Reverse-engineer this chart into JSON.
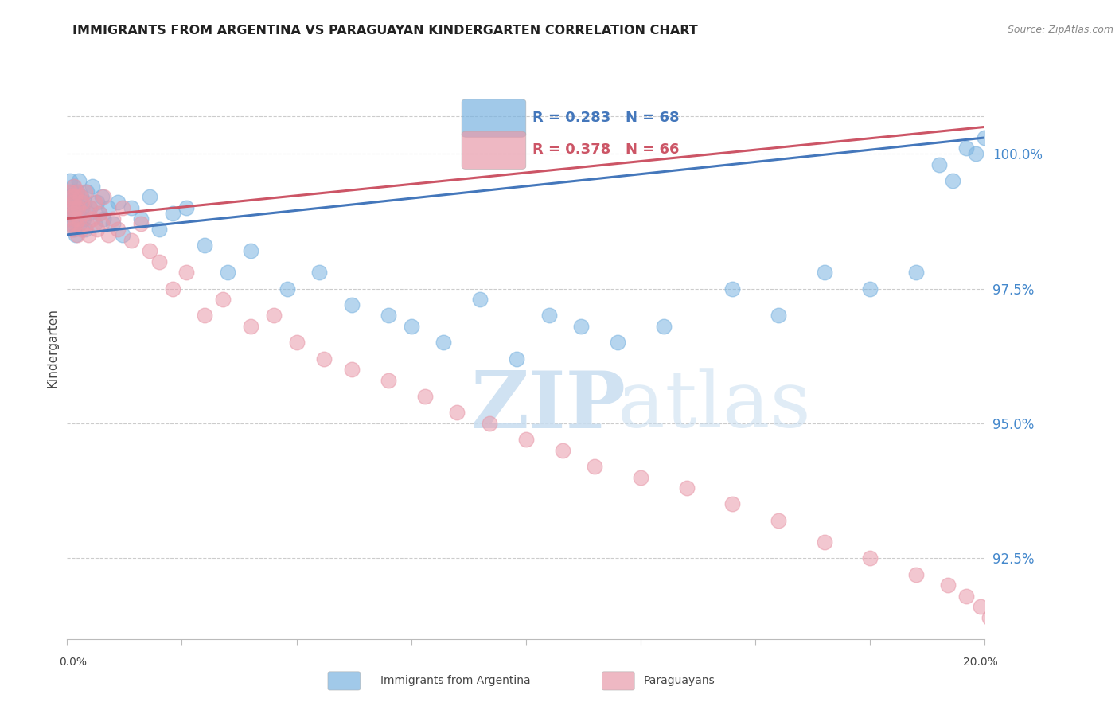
{
  "title": "IMMIGRANTS FROM ARGENTINA VS PARAGUAYAN KINDERGARTEN CORRELATION CHART",
  "source": "Source: ZipAtlas.com",
  "ylabel": "Kindergarten",
  "x_min": 0.0,
  "x_max": 20.0,
  "y_min": 91.0,
  "y_max": 101.8,
  "y_ticks": [
    92.5,
    95.0,
    97.5,
    100.0
  ],
  "blue_R": 0.283,
  "blue_N": 68,
  "pink_R": 0.378,
  "pink_N": 66,
  "blue_color": "#7ab3e0",
  "pink_color": "#e89aaa",
  "blue_line_color": "#4477bb",
  "pink_line_color": "#cc5566",
  "legend_label_blue": "Immigrants from Argentina",
  "legend_label_pink": "Paraguayans",
  "blue_x": [
    0.05,
    0.07,
    0.08,
    0.09,
    0.1,
    0.11,
    0.12,
    0.13,
    0.14,
    0.15,
    0.16,
    0.17,
    0.18,
    0.19,
    0.2,
    0.22,
    0.24,
    0.25,
    0.27,
    0.3,
    0.32,
    0.35,
    0.38,
    0.4,
    0.43,
    0.46,
    0.5,
    0.55,
    0.6,
    0.65,
    0.7,
    0.75,
    0.8,
    0.9,
    1.0,
    1.1,
    1.2,
    1.4,
    1.6,
    1.8,
    2.0,
    2.3,
    2.6,
    3.0,
    3.5,
    4.0,
    4.8,
    5.5,
    6.2,
    7.0,
    7.5,
    8.2,
    9.0,
    9.8,
    10.5,
    11.2,
    12.0,
    13.0,
    14.5,
    15.5,
    16.5,
    17.5,
    18.5,
    19.0,
    19.3,
    19.6,
    19.8,
    20.0
  ],
  "blue_y": [
    99.2,
    99.5,
    98.8,
    99.1,
    98.9,
    99.3,
    99.0,
    98.7,
    99.4,
    98.6,
    99.1,
    98.8,
    99.2,
    98.5,
    99.0,
    99.3,
    98.9,
    99.5,
    98.7,
    99.2,
    99.0,
    98.8,
    99.1,
    98.6,
    99.3,
    98.9,
    99.0,
    99.4,
    98.7,
    99.1,
    98.9,
    99.2,
    98.8,
    99.0,
    98.7,
    99.1,
    98.5,
    99.0,
    98.8,
    99.2,
    98.6,
    98.9,
    99.0,
    98.3,
    97.8,
    98.2,
    97.5,
    97.8,
    97.2,
    97.0,
    96.8,
    96.5,
    97.3,
    96.2,
    97.0,
    96.8,
    96.5,
    96.8,
    97.5,
    97.0,
    97.8,
    97.5,
    97.8,
    99.8,
    99.5,
    100.1,
    100.0,
    100.3
  ],
  "pink_x": [
    0.04,
    0.06,
    0.08,
    0.1,
    0.11,
    0.12,
    0.13,
    0.14,
    0.15,
    0.16,
    0.17,
    0.18,
    0.19,
    0.2,
    0.22,
    0.24,
    0.26,
    0.28,
    0.3,
    0.33,
    0.36,
    0.4,
    0.43,
    0.46,
    0.5,
    0.55,
    0.6,
    0.65,
    0.7,
    0.75,
    0.8,
    0.9,
    1.0,
    1.1,
    1.2,
    1.4,
    1.6,
    1.8,
    2.0,
    2.3,
    2.6,
    3.0,
    3.4,
    4.0,
    4.5,
    5.0,
    5.6,
    6.2,
    7.0,
    7.8,
    8.5,
    9.2,
    10.0,
    10.8,
    11.5,
    12.5,
    13.5,
    14.5,
    15.5,
    16.5,
    17.5,
    18.5,
    19.2,
    19.6,
    19.9,
    20.1
  ],
  "pink_y": [
    99.0,
    99.3,
    98.7,
    99.2,
    99.0,
    98.6,
    99.1,
    98.9,
    99.4,
    98.8,
    99.2,
    99.0,
    98.7,
    99.3,
    98.5,
    99.0,
    98.8,
    99.2,
    98.6,
    99.1,
    98.9,
    99.3,
    98.7,
    98.5,
    99.0,
    98.8,
    99.1,
    98.6,
    98.9,
    98.7,
    99.2,
    98.5,
    98.8,
    98.6,
    99.0,
    98.4,
    98.7,
    98.2,
    98.0,
    97.5,
    97.8,
    97.0,
    97.3,
    96.8,
    97.0,
    96.5,
    96.2,
    96.0,
    95.8,
    95.5,
    95.2,
    95.0,
    94.7,
    94.5,
    94.2,
    94.0,
    93.8,
    93.5,
    93.2,
    92.8,
    92.5,
    92.2,
    92.0,
    91.8,
    91.6,
    91.4
  ],
  "blue_line_x0": 0.0,
  "blue_line_y0": 98.5,
  "blue_line_x1": 20.0,
  "blue_line_y1": 100.3,
  "pink_line_x0": 0.0,
  "pink_line_y0": 98.8,
  "pink_line_x1": 20.0,
  "pink_line_y1": 100.5
}
